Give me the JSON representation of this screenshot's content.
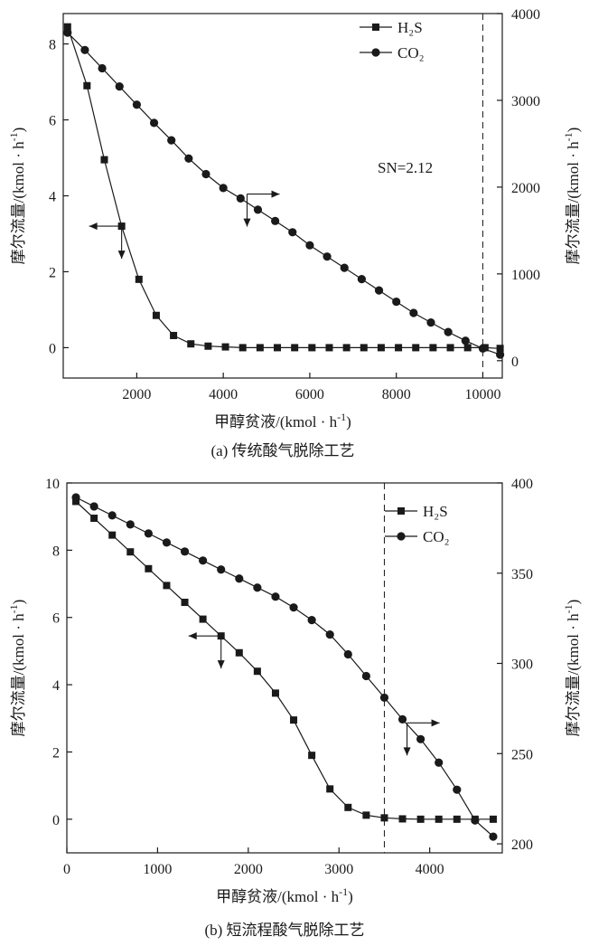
{
  "chart_data": [
    {
      "type": "line",
      "caption": "(a) 传统酸气脱除工艺",
      "xlabel": "甲醇贫液/(kmol · h",
      "ylabel_left": "摩尔流量/(kmol · h",
      "ylabel_right": "摩尔流量/(kmol · h",
      "unit_sup": "-1",
      "xlim": [
        300,
        10450
      ],
      "ylim_left": [
        -0.8,
        8.8
      ],
      "ylim_right": [
        -200,
        4000
      ],
      "xticks": [
        2000,
        4000,
        6000,
        8000,
        10000
      ],
      "xtick_labels": [
        "2000",
        "4000",
        "6000",
        "8000",
        "10000"
      ],
      "yticks_left": [
        0,
        2,
        4,
        6,
        8
      ],
      "ytick_labels_left": [
        "0",
        "2",
        "4",
        "6",
        "8"
      ],
      "yticks_right": [
        0,
        1000,
        2000,
        3000,
        4000
      ],
      "ytick_labels_right": [
        "0",
        "1000",
        "2000",
        "3000",
        "4000"
      ],
      "vline_x": 10000,
      "annotation": "SN=2.12",
      "legend_pos": "top-right",
      "series": [
        {
          "name": "H₂S",
          "marker": "square",
          "axis": "left",
          "x": [
            400,
            850,
            1250,
            1650,
            2050,
            2450,
            2850,
            3250,
            3650,
            4050,
            4450,
            4850,
            5250,
            5650,
            6050,
            6450,
            6850,
            7250,
            7650,
            8050,
            8450,
            8850,
            9250,
            9650,
            10050,
            10400
          ],
          "y": [
            8.45,
            6.9,
            4.95,
            3.2,
            1.8,
            0.85,
            0.32,
            0.1,
            0.04,
            0.02,
            0.0,
            0.0,
            0.0,
            0.0,
            0.0,
            0.0,
            0.0,
            0.0,
            0.0,
            0.0,
            0.0,
            0.0,
            0.0,
            0.0,
            0.0,
            -0.02
          ]
        },
        {
          "name": "CO₂",
          "marker": "circle",
          "axis": "right",
          "x": [
            400,
            800,
            1200,
            1600,
            2000,
            2400,
            2800,
            3200,
            3600,
            4000,
            4400,
            4800,
            5200,
            5600,
            6000,
            6400,
            6800,
            7200,
            7600,
            8000,
            8400,
            8800,
            9200,
            9600,
            10000,
            10400
          ],
          "y": [
            3780,
            3580,
            3370,
            3160,
            2950,
            2740,
            2540,
            2330,
            2150,
            1990,
            1870,
            1740,
            1610,
            1480,
            1330,
            1200,
            1070,
            940,
            810,
            680,
            550,
            440,
            330,
            230,
            140,
            70
          ]
        }
      ],
      "arrows": [
        {
          "series": "H₂S",
          "x": 1650,
          "y": 3.2,
          "dir": "left"
        },
        {
          "series": "CO₂",
          "x": 4550,
          "y": 1920,
          "dir": "right"
        }
      ]
    },
    {
      "type": "line",
      "caption": "(b) 短流程酸气脱除工艺",
      "xlabel": "甲醇贫液/(kmol · h",
      "ylabel_left": "摩尔流量/(kmol · h",
      "ylabel_right": "摩尔流量/(kmol · h",
      "unit_sup": "-1",
      "xlim": [
        0,
        4800
      ],
      "ylim_left": [
        -1,
        10
      ],
      "ylim_right": [
        195,
        400
      ],
      "xticks": [
        0,
        1000,
        2000,
        3000,
        4000
      ],
      "xtick_labels": [
        "0",
        "1000",
        "2000",
        "3000",
        "4000"
      ],
      "yticks_left": [
        0,
        2,
        4,
        6,
        8,
        10
      ],
      "ytick_labels_left": [
        "0",
        "2",
        "4",
        "6",
        "8",
        "10"
      ],
      "yticks_right": [
        200,
        250,
        300,
        350,
        400
      ],
      "ytick_labels_right": [
        "200",
        "250",
        "300",
        "350",
        "400"
      ],
      "vline_x": 3500,
      "annotation": "",
      "legend_pos": "top-right",
      "series": [
        {
          "name": "H₂S",
          "marker": "square",
          "axis": "left",
          "x": [
            100,
            300,
            500,
            700,
            900,
            1100,
            1300,
            1500,
            1700,
            1900,
            2100,
            2300,
            2500,
            2700,
            2900,
            3100,
            3300,
            3500,
            3700,
            3900,
            4100,
            4300,
            4500,
            4700
          ],
          "y": [
            9.45,
            8.95,
            8.45,
            7.95,
            7.45,
            6.95,
            6.45,
            5.95,
            5.45,
            4.95,
            4.4,
            3.75,
            2.95,
            1.9,
            0.9,
            0.35,
            0.12,
            0.04,
            0.01,
            0.0,
            0.0,
            0.0,
            0.0,
            0.0
          ]
        },
        {
          "name": "CO₂",
          "marker": "circle",
          "axis": "right",
          "x": [
            100,
            300,
            500,
            700,
            900,
            1100,
            1300,
            1500,
            1700,
            1900,
            2100,
            2300,
            2500,
            2700,
            2900,
            3100,
            3300,
            3500,
            3700,
            3900,
            4100,
            4300,
            4500,
            4700
          ],
          "y": [
            392,
            387,
            382,
            377,
            372,
            367,
            362,
            357,
            352,
            347,
            342,
            337,
            331,
            324,
            316,
            305,
            293,
            281,
            269,
            258,
            245,
            230,
            213,
            204
          ]
        }
      ],
      "arrows": [
        {
          "series": "H₂S",
          "x": 1700,
          "y": 5.45,
          "dir": "left"
        },
        {
          "series": "CO₂",
          "x": 3750,
          "y": 267,
          "dir": "right"
        }
      ]
    }
  ]
}
